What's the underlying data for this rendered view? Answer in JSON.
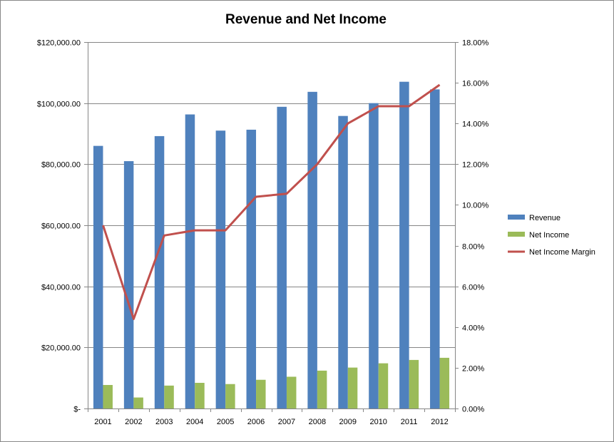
{
  "chart_data": {
    "type": "bar",
    "title": "Revenue and Net Income",
    "categories": [
      "2001",
      "2002",
      "2003",
      "2004",
      "2005",
      "2006",
      "2007",
      "2008",
      "2009",
      "2010",
      "2011",
      "2012"
    ],
    "series": [
      {
        "name": "Revenue",
        "type": "bar",
        "axis": "left",
        "color": "#4F81BD",
        "values": [
          86000,
          81000,
          89200,
          96300,
          91000,
          91300,
          98800,
          103700,
          95800,
          100000,
          107000,
          104500
        ]
      },
      {
        "name": "Net Income",
        "type": "bar",
        "axis": "left",
        "color": "#9BBB59",
        "values": [
          7700,
          3600,
          7500,
          8400,
          8000,
          9400,
          10400,
          12400,
          13400,
          14800,
          15900,
          16600
        ]
      },
      {
        "name": "Net Income Margin",
        "type": "line",
        "axis": "right",
        "color": "#C0504D",
        "values": [
          0.09,
          0.044,
          0.085,
          0.0875,
          0.0875,
          0.104,
          0.1055,
          0.12,
          0.14,
          0.1485,
          0.1485,
          0.159
        ]
      }
    ],
    "y_left": {
      "ylim": [
        0,
        120000
      ],
      "ticks": [
        0,
        20000,
        40000,
        60000,
        80000,
        100000,
        120000
      ],
      "tick_labels": [
        "$-",
        "$20,000.00",
        "$40,000.00",
        "$60,000.00",
        "$80,000.00",
        "$100,000.00",
        "$120,000.00"
      ]
    },
    "y_right": {
      "ylim": [
        0,
        0.18
      ],
      "ticks": [
        0,
        0.02,
        0.04,
        0.06,
        0.08,
        0.1,
        0.12,
        0.14,
        0.16,
        0.18
      ],
      "tick_labels": [
        "0.00%",
        "2.00%",
        "4.00%",
        "6.00%",
        "8.00%",
        "10.00%",
        "12.00%",
        "14.00%",
        "16.00%",
        "18.00%"
      ]
    },
    "grid": "horizontal",
    "legend": "right",
    "gridline_color": "#868686"
  }
}
